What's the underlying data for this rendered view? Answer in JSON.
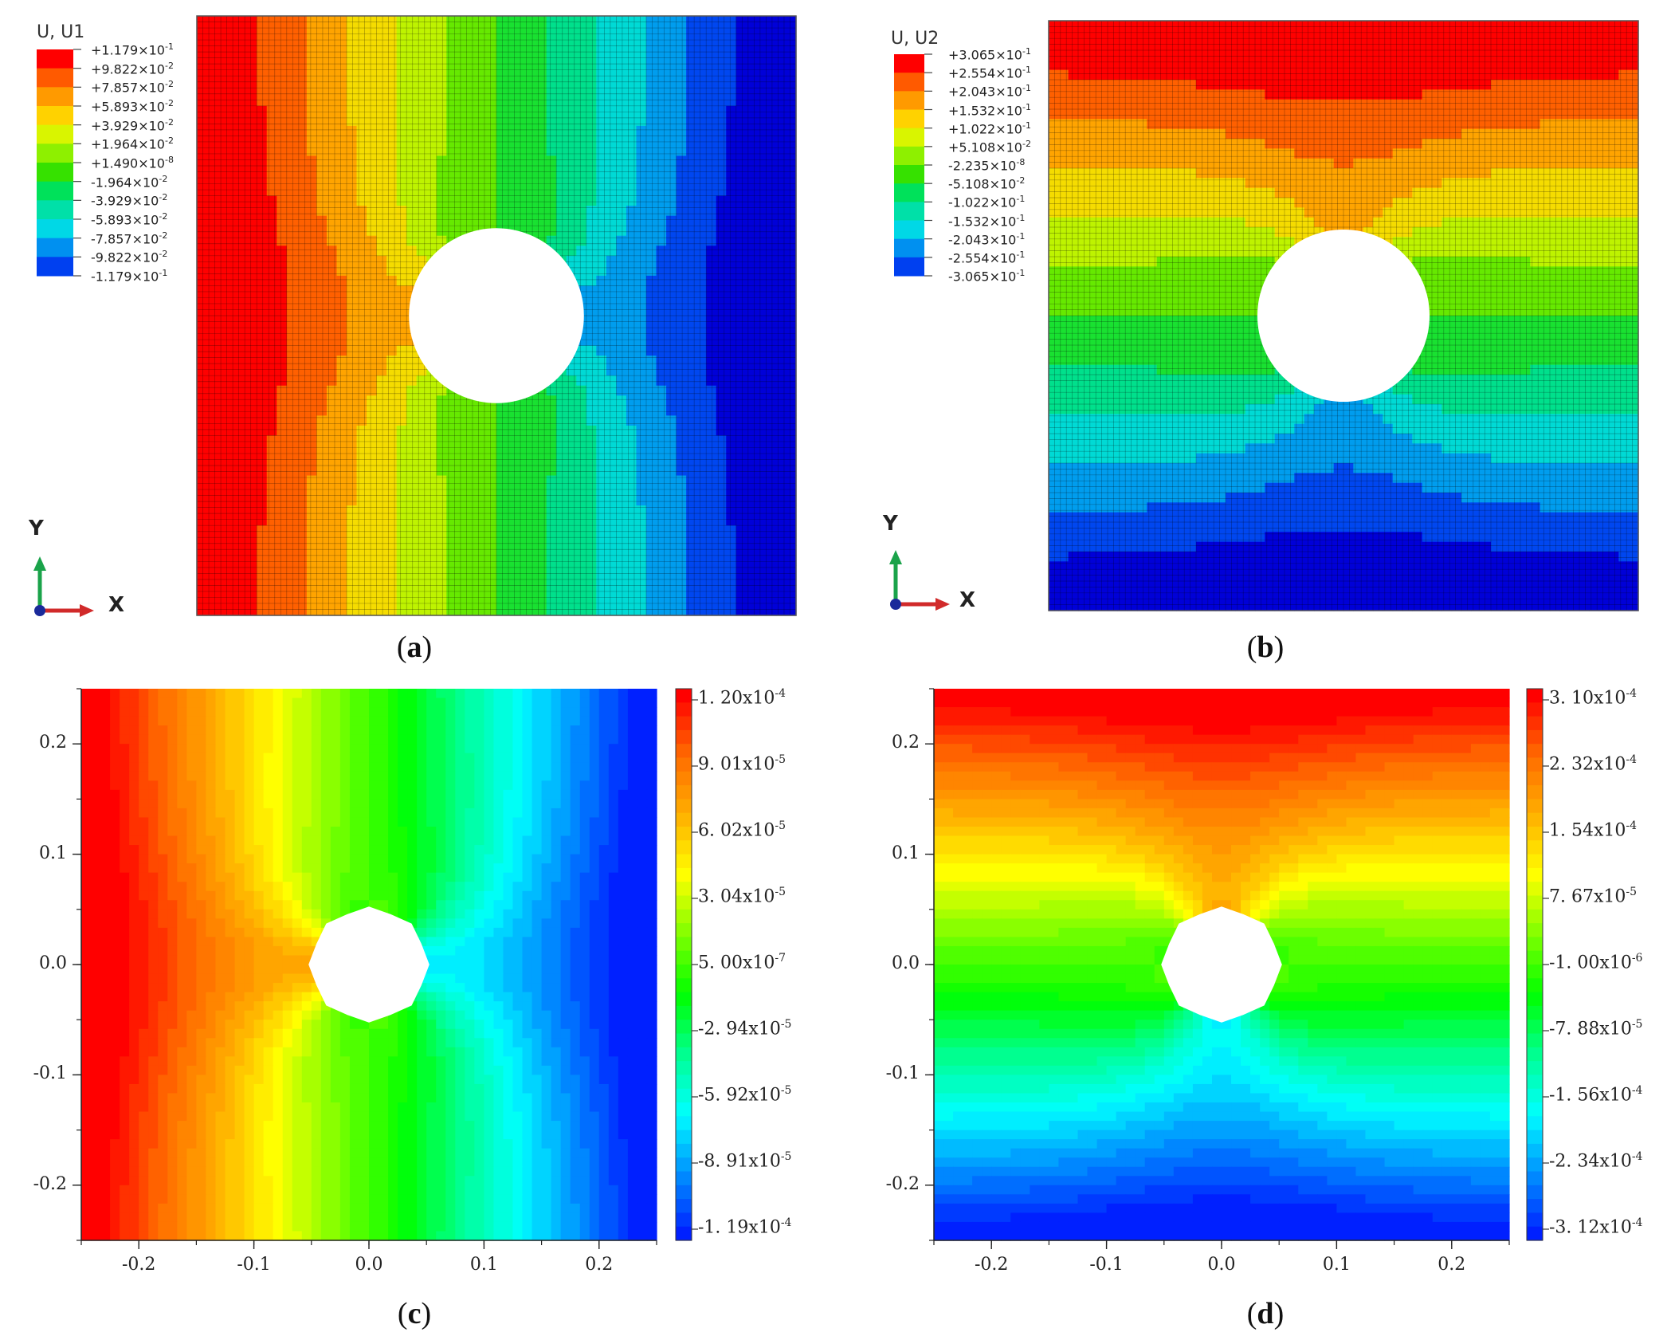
{
  "colors": {
    "fe_scale": [
      "#ff0000",
      "#ff5a00",
      "#ff9a00",
      "#ffd200",
      "#d9f500",
      "#8ef000",
      "#36e100",
      "#00e15a",
      "#00e0a8",
      "#00d8e6",
      "#0090f0",
      "#0040f0",
      "#0000d8"
    ],
    "contour_scale": [
      "#ff0000",
      "#ff6a00",
      "#ffb000",
      "#ffff00",
      "#80ff00",
      "#00ff00",
      "#00ff90",
      "#00ffff",
      "#0090ff",
      "#0020ff"
    ],
    "hole": "#ffffff"
  },
  "triad": {
    "x_label": "X",
    "y_label": "Y"
  },
  "chart_data": [
    {
      "id": "a",
      "type": "heatmap",
      "caption_letter": "a",
      "legend_title": "U, U1",
      "legend_levels": [
        {
          "mant": "+1.179×10",
          "exp": "-1"
        },
        {
          "mant": "+9.822×10",
          "exp": "-2"
        },
        {
          "mant": "+7.857×10",
          "exp": "-2"
        },
        {
          "mant": "+5.893×10",
          "exp": "-2"
        },
        {
          "mant": "+3.929×10",
          "exp": "-2"
        },
        {
          "mant": "+1.964×10",
          "exp": "-2"
        },
        {
          "mant": "+1.490×10",
          "exp": "-8"
        },
        {
          "mant": "-1.964×10",
          "exp": "-2"
        },
        {
          "mant": "-3.929×10",
          "exp": "-2"
        },
        {
          "mant": "-5.893×10",
          "exp": "-2"
        },
        {
          "mant": "-7.857×10",
          "exp": "-2"
        },
        {
          "mant": "-9.822×10",
          "exp": "-2"
        },
        {
          "mant": "-1.179×10",
          "exp": "-1"
        }
      ],
      "field": "U1",
      "vmin": -0.1179,
      "vmax": 0.1179,
      "xlim": [
        -0.25,
        0.25
      ],
      "ylim": [
        -0.25,
        0.25
      ],
      "hole_radius": 0.05,
      "mesh": true
    },
    {
      "id": "b",
      "type": "heatmap",
      "caption_letter": "b",
      "legend_title": "U, U2",
      "legend_levels": [
        {
          "mant": "+3.065×10",
          "exp": "-1"
        },
        {
          "mant": "+2.554×10",
          "exp": "-1"
        },
        {
          "mant": "+2.043×10",
          "exp": "-1"
        },
        {
          "mant": "+1.532×10",
          "exp": "-1"
        },
        {
          "mant": "+1.022×10",
          "exp": "-1"
        },
        {
          "mant": "+5.108×10",
          "exp": "-2"
        },
        {
          "mant": "-2.235×10",
          "exp": "-8"
        },
        {
          "mant": "-5.108×10",
          "exp": "-2"
        },
        {
          "mant": "-1.022×10",
          "exp": "-1"
        },
        {
          "mant": "-1.532×10",
          "exp": "-1"
        },
        {
          "mant": "-2.043×10",
          "exp": "-1"
        },
        {
          "mant": "-2.554×10",
          "exp": "-1"
        },
        {
          "mant": "-3.065×10",
          "exp": "-1"
        }
      ],
      "field": "U2",
      "vmin": -0.3065,
      "vmax": 0.3065,
      "xlim": [
        -0.25,
        0.25
      ],
      "ylim": [
        -0.25,
        0.25
      ],
      "hole_radius": 0.05,
      "mesh": true
    },
    {
      "id": "c",
      "type": "heatmap",
      "caption_letter": "c",
      "colorbar_ticks": [
        {
          "mant": "1. 20x10",
          "exp": "-4"
        },
        {
          "mant": "9. 01x10",
          "exp": "-5"
        },
        {
          "mant": "6. 02x10",
          "exp": "-5"
        },
        {
          "mant": "3. 04x10",
          "exp": "-5"
        },
        {
          "mant": "5. 00x10",
          "exp": "-7"
        },
        {
          "mant": "-2. 94x10",
          "exp": "-5"
        },
        {
          "mant": "-5. 92x10",
          "exp": "-5"
        },
        {
          "mant": "-8. 91x10",
          "exp": "-5"
        },
        {
          "mant": "-1. 19x10",
          "exp": "-4"
        }
      ],
      "x_ticks": [
        "-0.2",
        "-0.1",
        "0.0",
        "0.1",
        "0.2"
      ],
      "y_ticks": [
        "0.2",
        "0.1",
        "0.0",
        "-0.1",
        "-0.2"
      ],
      "x_tick_values": [
        -0.2,
        -0.1,
        0.0,
        0.1,
        0.2
      ],
      "y_tick_values": [
        0.2,
        0.1,
        0.0,
        -0.1,
        -0.2
      ],
      "field": "U1",
      "vmin": -0.000119,
      "vmax": 0.00012,
      "xlim": [
        -0.25,
        0.25
      ],
      "ylim": [
        -0.25,
        0.25
      ],
      "hole_radius": 0.05,
      "mesh": false
    },
    {
      "id": "d",
      "type": "heatmap",
      "caption_letter": "d",
      "colorbar_ticks": [
        {
          "mant": "3. 10x10",
          "exp": "-4"
        },
        {
          "mant": "2. 32x10",
          "exp": "-4"
        },
        {
          "mant": "1. 54x10",
          "exp": "-4"
        },
        {
          "mant": "7. 67x10",
          "exp": "-5"
        },
        {
          "mant": "-1. 00x10",
          "exp": "-6"
        },
        {
          "mant": "-7. 88x10",
          "exp": "-5"
        },
        {
          "mant": "-1. 56x10",
          "exp": "-4"
        },
        {
          "mant": "-2. 34x10",
          "exp": "-4"
        },
        {
          "mant": "-3. 12x10",
          "exp": "-4"
        }
      ],
      "x_ticks": [
        "-0.2",
        "-0.1",
        "0.0",
        "0.1",
        "0.2"
      ],
      "y_ticks": [
        "0.2",
        "0.1",
        "0.0",
        "-0.1",
        "-0.2"
      ],
      "x_tick_values": [
        -0.2,
        -0.1,
        0.0,
        0.1,
        0.2
      ],
      "y_tick_values": [
        0.2,
        0.1,
        0.0,
        -0.1,
        -0.2
      ],
      "field": "U2",
      "vmin": -0.000312,
      "vmax": 0.00031,
      "xlim": [
        -0.25,
        0.25
      ],
      "ylim": [
        -0.25,
        0.25
      ],
      "hole_radius": 0.05,
      "mesh": false
    }
  ]
}
